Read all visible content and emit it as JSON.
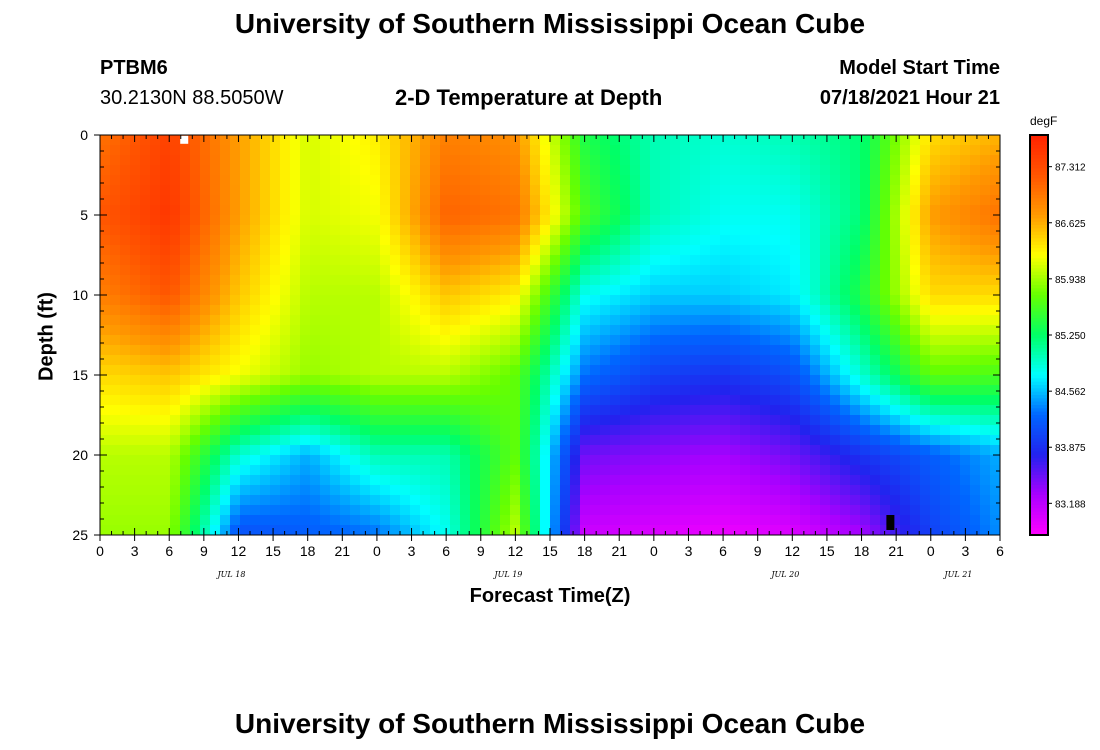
{
  "header": {
    "title": "University of Southern Mississippi Ocean Cube",
    "station": "PTBM6",
    "coords": "30.2130N  88.5050W",
    "plot_title": "2-D Temperature at Depth",
    "model_label": "Model Start Time",
    "model_time": "07/18/2021 Hour 21"
  },
  "footer": {
    "title": "University of Southern Mississippi Ocean Cube"
  },
  "chart_data": {
    "type": "heatmap",
    "title": "2-D Temperature at Depth",
    "xlabel": "Forecast Time(Z)",
    "ylabel": "Depth (ft)",
    "x_unit": "hours since 07/18/2021 00Z",
    "x_range": [
      0,
      78
    ],
    "y_range": [
      0,
      25
    ],
    "y_reversed": true,
    "x_tick_labels": [
      "0",
      "3",
      "6",
      "9",
      "12",
      "15",
      "18",
      "21",
      "0",
      "3",
      "6",
      "9",
      "12",
      "15",
      "18",
      "21",
      "0",
      "3",
      "6",
      "9",
      "12",
      "15",
      "18",
      "21",
      "0",
      "3",
      "6"
    ],
    "day_labels": [
      {
        "hour": 12,
        "label": "JUL 18"
      },
      {
        "hour": 36,
        "label": "JUL 19"
      },
      {
        "hour": 60,
        "label": "JUL 20"
      },
      {
        "hour": 75,
        "label": "JUL 21"
      }
    ],
    "y_ticks": [
      0,
      5,
      10,
      15,
      20,
      25
    ],
    "colorbar": {
      "unit": "degF",
      "min": 82.8,
      "max": 87.7,
      "ticks": [
        "87.312",
        "86.625",
        "85.938",
        "85.250",
        "84.562",
        "83.875",
        "83.188"
      ],
      "colors": [
        "#ff00ff",
        "#aa00ff",
        "#2222ee",
        "#0066ff",
        "#00ffff",
        "#00ff66",
        "#66ff00",
        "#ffff00",
        "#ff9900",
        "#ff5500",
        "#ff2200"
      ]
    },
    "depths_ft": [
      0,
      5,
      10,
      15,
      20,
      25
    ],
    "hours": [
      0,
      6,
      12,
      18,
      24,
      30,
      36,
      42,
      48,
      54,
      60,
      66,
      72,
      78
    ],
    "values": [
      [
        87.0,
        87.4,
        86.7,
        86.1,
        86.3,
        86.9,
        86.8,
        85.4,
        85.0,
        84.9,
        85.0,
        85.2,
        86.4,
        86.6
      ],
      [
        87.2,
        87.5,
        86.7,
        86.1,
        86.2,
        87.1,
        87.0,
        85.6,
        85.0,
        84.8,
        84.8,
        85.2,
        86.7,
        87.0
      ],
      [
        86.9,
        87.2,
        86.5,
        86.0,
        86.0,
        86.5,
        86.3,
        84.8,
        84.6,
        84.6,
        84.7,
        85.4,
        86.4,
        86.4
      ],
      [
        86.4,
        86.5,
        86.2,
        85.9,
        86.0,
        86.0,
        85.7,
        84.3,
        84.0,
        83.9,
        84.1,
        84.9,
        85.7,
        85.6
      ],
      [
        86.0,
        86.0,
        84.9,
        84.5,
        85.0,
        85.0,
        85.7,
        83.5,
        83.4,
        83.3,
        83.5,
        83.9,
        84.2,
        84.5
      ],
      [
        85.9,
        85.9,
        84.1,
        84.2,
        84.3,
        84.8,
        86.0,
        83.1,
        83.0,
        82.9,
        83.0,
        83.3,
        84.0,
        84.4
      ]
    ],
    "markers": [
      {
        "hour": 7.3,
        "depth_ft": 0.3,
        "color": "#ffffff"
      },
      {
        "hour": 68.5,
        "depth_ft": 24.0,
        "color": "#000000"
      }
    ]
  }
}
